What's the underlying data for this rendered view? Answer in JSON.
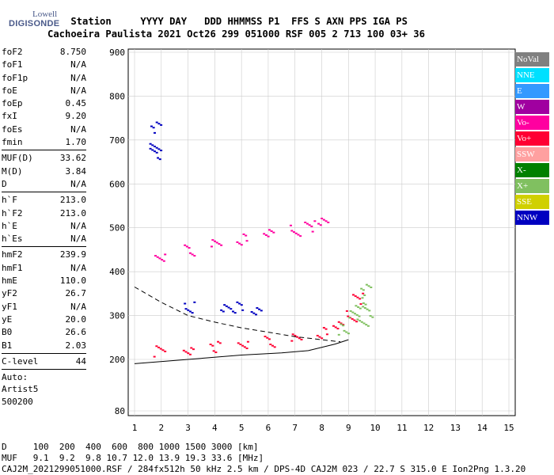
{
  "logo": {
    "line1": "Lowell",
    "line2": "DIGISONDE"
  },
  "header": {
    "line1": "    Station     YYYY DAY   DDD HHMMSS P1  FFS S AXN PPS IGA PS",
    "line2": "Cachoeira Paulista 2021 Oct26 299 051000 RSF 005 2 713 100 03+ 36"
  },
  "params_group1": [
    {
      "name": "foF2",
      "value": "8.750"
    },
    {
      "name": "foF1",
      "value": "N/A"
    },
    {
      "name": "foF1p",
      "value": "N/A"
    },
    {
      "name": "foE",
      "value": "N/A"
    },
    {
      "name": "foEp",
      "value": "0.45"
    },
    {
      "name": "fxI",
      "value": "9.20"
    },
    {
      "name": "foEs",
      "value": "N/A"
    },
    {
      "name": "fmin",
      "value": "1.70"
    }
  ],
  "params_group2": [
    {
      "name": "MUF(D)",
      "value": "33.62"
    },
    {
      "name": "M(D)",
      "value": "3.84"
    },
    {
      "name": "D",
      "value": "N/A"
    }
  ],
  "params_group3": [
    {
      "name": "h`F",
      "value": "213.0"
    },
    {
      "name": "h`F2",
      "value": "213.0"
    },
    {
      "name": "h`E",
      "value": "N/A"
    },
    {
      "name": "h`Es",
      "value": "N/A"
    }
  ],
  "params_group4": [
    {
      "name": "hmF2",
      "value": "239.9"
    },
    {
      "name": "hmF1",
      "value": "N/A"
    },
    {
      "name": "hmE",
      "value": "110.0"
    },
    {
      "name": "yF2",
      "value": "26.7"
    },
    {
      "name": "yF1",
      "value": "N/A"
    },
    {
      "name": "yE",
      "value": "20.0"
    },
    {
      "name": "B0",
      "value": "26.6"
    },
    {
      "name": "B1",
      "value": "2.03"
    }
  ],
  "params_group5": [
    {
      "name": "C-level",
      "value": "44"
    }
  ],
  "autoscale": {
    "line1": "Auto:",
    "line2": "Artist5",
    "line3": "500200"
  },
  "legend": [
    {
      "label": "NoVal",
      "color": "#808080"
    },
    {
      "label": "NNE",
      "color": "#00e0ff"
    },
    {
      "label": "E",
      "color": "#3399ff"
    },
    {
      "label": "W",
      "color": "#a000a0"
    },
    {
      "label": "Vo-",
      "color": "#ff00a0"
    },
    {
      "label": "Vo+",
      "color": "#ff0033"
    },
    {
      "label": "SSW",
      "color": "#ffa0a0"
    },
    {
      "label": "X-",
      "color": "#008000"
    },
    {
      "label": "X+",
      "color": "#80c060"
    },
    {
      "label": "SSE",
      "color": "#d0d000"
    },
    {
      "label": "NNW",
      "color": "#0000c0"
    }
  ],
  "bottom": {
    "line1": "D     100  200  400  600  800 1000 1500 3000 [km]",
    "line2": "MUF   9.1  9.2  9.8 10.7 12.0 13.9 19.3 33.6 [MHz]",
    "line3": "CAJ2M_2021299051000.RSF / 284fx512h 50 kHz 2.5 km / DPS-4D CAJ2M 023 / 22.7 S 315.0 E Ion2Png 1.3.20"
  },
  "chart_data": {
    "type": "scatter",
    "title": "",
    "xlabel": "",
    "ylabel": "",
    "xlim": [
      1,
      15
    ],
    "ylim": [
      80,
      900
    ],
    "x_ticks": [
      "1",
      "2",
      "3",
      "4",
      "5",
      "6",
      "7",
      "8",
      "9",
      "10",
      "11",
      "12",
      "13",
      "14",
      "15"
    ],
    "y_ticks": [
      "80",
      "200",
      "300",
      "400",
      "500",
      "600",
      "700",
      "800",
      "900"
    ],
    "grid": true,
    "legend_position": "right",
    "series": [
      {
        "name": "Vo+",
        "values": [
          [
            1.9,
            220
          ],
          [
            3,
            225
          ],
          [
            4,
            230
          ],
          [
            5,
            236
          ],
          [
            6,
            242
          ],
          [
            7,
            250
          ],
          [
            8,
            262
          ],
          [
            8.6,
            275
          ],
          [
            9.1,
            300
          ],
          [
            9.3,
            340
          ]
        ]
      },
      {
        "name": "X+",
        "values": [
          [
            8.8,
            270
          ],
          [
            9.2,
            300
          ],
          [
            9.4,
            330
          ],
          [
            9.6,
            360
          ],
          [
            9.5,
            290
          ],
          [
            9.7,
            310
          ]
        ]
      },
      {
        "name": "Vo-",
        "values": [
          [
            1.9,
            435
          ],
          [
            3,
            450
          ],
          [
            4,
            465
          ],
          [
            5,
            475
          ],
          [
            6,
            485
          ],
          [
            7,
            495
          ],
          [
            7.5,
            505
          ],
          [
            8,
            520
          ]
        ]
      },
      {
        "name": "NNW",
        "values": [
          [
            1.75,
            730
          ],
          [
            1.75,
            690
          ],
          [
            1.75,
            670
          ],
          [
            4.4,
            320
          ],
          [
            4.8,
            320
          ],
          [
            5.5,
            310
          ],
          [
            3,
            320
          ]
        ]
      }
    ],
    "profile_solid": [
      [
        1,
        190
      ],
      [
        3,
        200
      ],
      [
        5,
        210
      ],
      [
        6.5,
        215
      ],
      [
        7.5,
        220
      ],
      [
        8.5,
        235
      ],
      [
        9,
        245
      ],
      [
        8.5,
        235
      ]
    ],
    "profile_dashed": [
      [
        1,
        365
      ],
      [
        2,
        330
      ],
      [
        3,
        300
      ],
      [
        4,
        285
      ],
      [
        5,
        272
      ],
      [
        6,
        262
      ],
      [
        7,
        252
      ],
      [
        8,
        245
      ],
      [
        8.7,
        240
      ]
    ]
  }
}
